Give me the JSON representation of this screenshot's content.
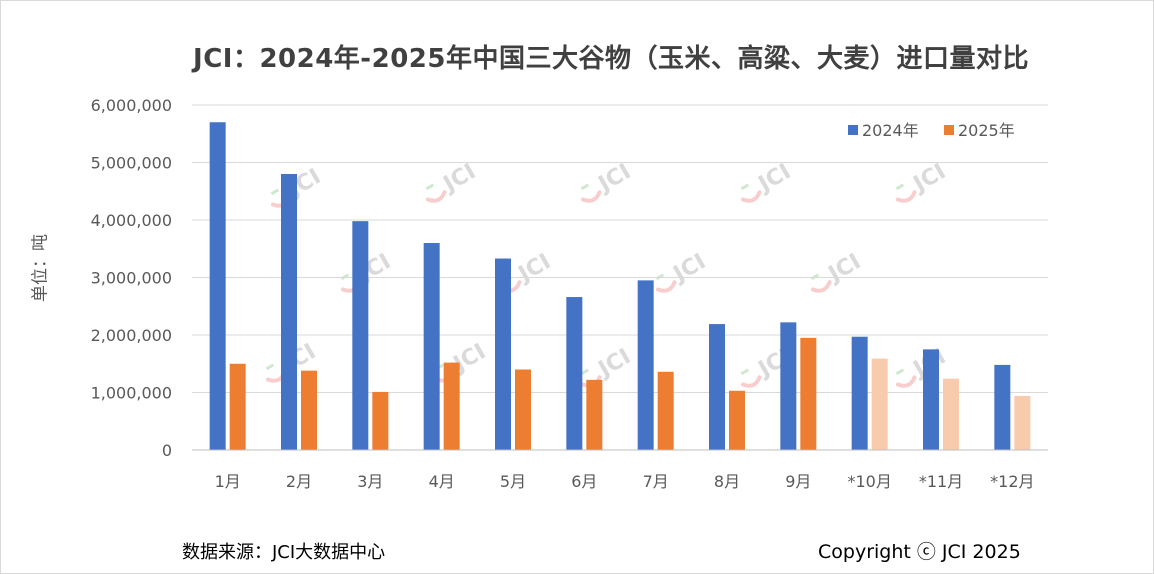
{
  "title": "JCI：2024年-2025年中国三大谷物（玉米、高粱、大麦）进口量对比",
  "ylabel": "单位：吨",
  "source": "数据来源：JCI大数据中心",
  "copyright": "Copyright ⓒ JCI 2025",
  "watermark": "JCI",
  "chart_data": {
    "type": "bar",
    "title": "JCI：2024年-2025年中国三大谷物（玉米、高粱、大麦）进口量对比",
    "xlabel": "",
    "ylabel": "单位：吨",
    "ylim": [
      0,
      6000000
    ],
    "yticks": [
      0,
      1000000,
      2000000,
      3000000,
      4000000,
      5000000,
      6000000
    ],
    "ytick_labels": [
      "0",
      "1,000,000",
      "2,000,000",
      "3,000,000",
      "4,000,000",
      "5,000,000",
      "6,000,000"
    ],
    "grid": true,
    "legend_position": "top-right",
    "categories": [
      "1月",
      "2月",
      "3月",
      "4月",
      "5月",
      "6月",
      "7月",
      "8月",
      "9月",
      "*10月",
      "*11月",
      "*12月"
    ],
    "series": [
      {
        "name": "2024年",
        "color": "#4472c4",
        "values": [
          5700000,
          4800000,
          3980000,
          3600000,
          3330000,
          2660000,
          2950000,
          2190000,
          2220000,
          1970000,
          1750000,
          1480000
        ]
      },
      {
        "name": "2025年",
        "color": "#ed7d31",
        "faded_color": "#f8cbad",
        "faded_from_index": 9,
        "values": [
          1500000,
          1380000,
          1010000,
          1520000,
          1400000,
          1220000,
          1360000,
          1030000,
          1950000,
          1590000,
          1240000,
          940000
        ]
      }
    ]
  }
}
